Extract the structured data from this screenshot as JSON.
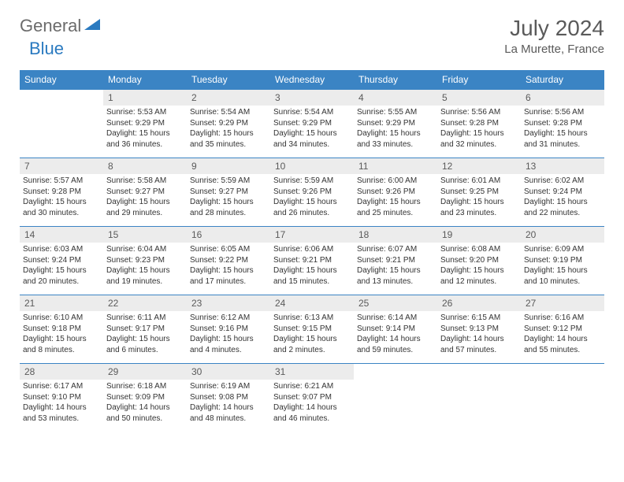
{
  "logo": {
    "text1": "General",
    "text2": "Blue",
    "text1_color": "#6b6b6b",
    "text2_color": "#2a7ac0",
    "triangle_color": "#2a7ac0"
  },
  "title": "July 2024",
  "location": "La Murette, France",
  "header_bg": "#3b84c4",
  "header_fg": "#ffffff",
  "daynum_bg": "#ececec",
  "border_color": "#3b84c4",
  "weekdays": [
    "Sunday",
    "Monday",
    "Tuesday",
    "Wednesday",
    "Thursday",
    "Friday",
    "Saturday"
  ],
  "first_weekday_index": 1,
  "days_in_month": 31,
  "days": {
    "1": {
      "sunrise": "5:53 AM",
      "sunset": "9:29 PM",
      "dl_h": 15,
      "dl_m": 36
    },
    "2": {
      "sunrise": "5:54 AM",
      "sunset": "9:29 PM",
      "dl_h": 15,
      "dl_m": 35
    },
    "3": {
      "sunrise": "5:54 AM",
      "sunset": "9:29 PM",
      "dl_h": 15,
      "dl_m": 34
    },
    "4": {
      "sunrise": "5:55 AM",
      "sunset": "9:29 PM",
      "dl_h": 15,
      "dl_m": 33
    },
    "5": {
      "sunrise": "5:56 AM",
      "sunset": "9:28 PM",
      "dl_h": 15,
      "dl_m": 32
    },
    "6": {
      "sunrise": "5:56 AM",
      "sunset": "9:28 PM",
      "dl_h": 15,
      "dl_m": 31
    },
    "7": {
      "sunrise": "5:57 AM",
      "sunset": "9:28 PM",
      "dl_h": 15,
      "dl_m": 30
    },
    "8": {
      "sunrise": "5:58 AM",
      "sunset": "9:27 PM",
      "dl_h": 15,
      "dl_m": 29
    },
    "9": {
      "sunrise": "5:59 AM",
      "sunset": "9:27 PM",
      "dl_h": 15,
      "dl_m": 28
    },
    "10": {
      "sunrise": "5:59 AM",
      "sunset": "9:26 PM",
      "dl_h": 15,
      "dl_m": 26
    },
    "11": {
      "sunrise": "6:00 AM",
      "sunset": "9:26 PM",
      "dl_h": 15,
      "dl_m": 25
    },
    "12": {
      "sunrise": "6:01 AM",
      "sunset": "9:25 PM",
      "dl_h": 15,
      "dl_m": 23
    },
    "13": {
      "sunrise": "6:02 AM",
      "sunset": "9:24 PM",
      "dl_h": 15,
      "dl_m": 22
    },
    "14": {
      "sunrise": "6:03 AM",
      "sunset": "9:24 PM",
      "dl_h": 15,
      "dl_m": 20
    },
    "15": {
      "sunrise": "6:04 AM",
      "sunset": "9:23 PM",
      "dl_h": 15,
      "dl_m": 19
    },
    "16": {
      "sunrise": "6:05 AM",
      "sunset": "9:22 PM",
      "dl_h": 15,
      "dl_m": 17
    },
    "17": {
      "sunrise": "6:06 AM",
      "sunset": "9:21 PM",
      "dl_h": 15,
      "dl_m": 15
    },
    "18": {
      "sunrise": "6:07 AM",
      "sunset": "9:21 PM",
      "dl_h": 15,
      "dl_m": 13
    },
    "19": {
      "sunrise": "6:08 AM",
      "sunset": "9:20 PM",
      "dl_h": 15,
      "dl_m": 12
    },
    "20": {
      "sunrise": "6:09 AM",
      "sunset": "9:19 PM",
      "dl_h": 15,
      "dl_m": 10
    },
    "21": {
      "sunrise": "6:10 AM",
      "sunset": "9:18 PM",
      "dl_h": 15,
      "dl_m": 8
    },
    "22": {
      "sunrise": "6:11 AM",
      "sunset": "9:17 PM",
      "dl_h": 15,
      "dl_m": 6
    },
    "23": {
      "sunrise": "6:12 AM",
      "sunset": "9:16 PM",
      "dl_h": 15,
      "dl_m": 4
    },
    "24": {
      "sunrise": "6:13 AM",
      "sunset": "9:15 PM",
      "dl_h": 15,
      "dl_m": 2
    },
    "25": {
      "sunrise": "6:14 AM",
      "sunset": "9:14 PM",
      "dl_h": 14,
      "dl_m": 59
    },
    "26": {
      "sunrise": "6:15 AM",
      "sunset": "9:13 PM",
      "dl_h": 14,
      "dl_m": 57
    },
    "27": {
      "sunrise": "6:16 AM",
      "sunset": "9:12 PM",
      "dl_h": 14,
      "dl_m": 55
    },
    "28": {
      "sunrise": "6:17 AM",
      "sunset": "9:10 PM",
      "dl_h": 14,
      "dl_m": 53
    },
    "29": {
      "sunrise": "6:18 AM",
      "sunset": "9:09 PM",
      "dl_h": 14,
      "dl_m": 50
    },
    "30": {
      "sunrise": "6:19 AM",
      "sunset": "9:08 PM",
      "dl_h": 14,
      "dl_m": 48
    },
    "31": {
      "sunrise": "6:21 AM",
      "sunset": "9:07 PM",
      "dl_h": 14,
      "dl_m": 46
    }
  },
  "labels": {
    "sunrise": "Sunrise:",
    "sunset": "Sunset:",
    "daylight": "Daylight:"
  }
}
